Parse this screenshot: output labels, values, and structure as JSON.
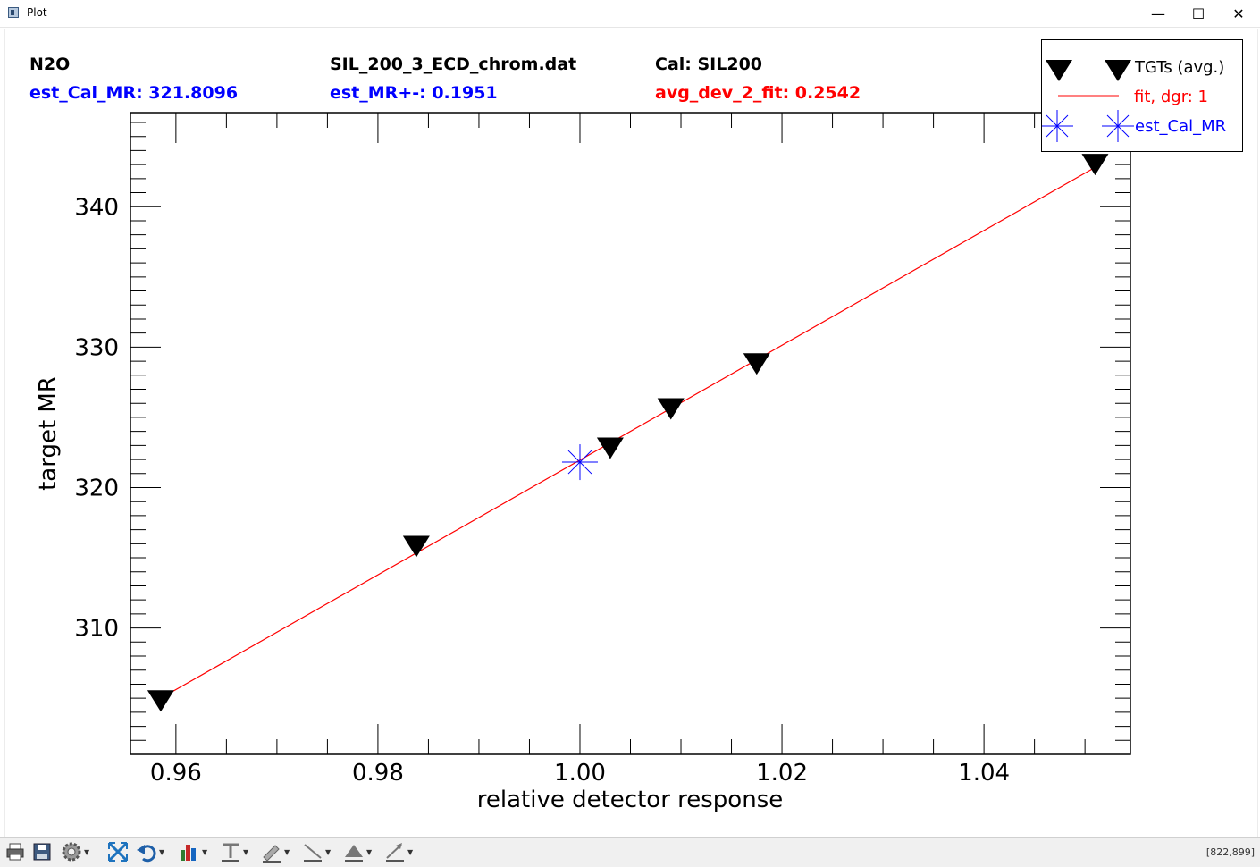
{
  "window": {
    "title": "Plot",
    "minimize_glyph": "—",
    "maximize_glyph": "☐",
    "close_glyph": "✕"
  },
  "header": {
    "gas": "N2O",
    "est_cal_mr": "est_Cal_MR: 321.8096",
    "filename": "SIL_200_3_ECD_chrom.dat",
    "est_mr_pm": "est_MR+-: 0.1951",
    "cal": "Cal: SIL200",
    "avg_dev": "avg_dev_2_fit: 0.2542"
  },
  "legend": {
    "tgts": "TGTs (avg.)",
    "fit": "fit, dgr:  1",
    "est": "est_Cal_MR"
  },
  "chart_data": {
    "type": "scatter",
    "xlabel": "relative detector response",
    "ylabel": "target MR",
    "xlim": [
      0.9555,
      1.0545
    ],
    "ylim": [
      301.0,
      346.7
    ],
    "x_major_ticks": [
      0.96,
      0.98,
      1.0,
      1.02,
      1.04
    ],
    "x_tick_labels": [
      "0.96",
      "0.98",
      "1.00",
      "1.02",
      "1.04"
    ],
    "x_minor_step": 0.005,
    "y_major_ticks": [
      310,
      320,
      330,
      340
    ],
    "y_tick_labels": [
      "310",
      "320",
      "330",
      "340"
    ],
    "y_minor_step": 1,
    "grid": false,
    "legend_position": "top-right",
    "series": [
      {
        "name": "TGTs (avg.)",
        "marker": "down-triangle",
        "color": "#000000",
        "x": [
          0.9585,
          0.9838,
          1.003,
          1.009,
          1.0175,
          1.051
        ],
        "y": [
          304.8,
          315.8,
          322.8,
          325.6,
          328.8,
          343.0
        ]
      },
      {
        "name": "fit, dgr:  1",
        "style": "line",
        "color": "#ff0000",
        "x": [
          0.9585,
          1.051
        ],
        "y": [
          305.0,
          342.8
        ]
      },
      {
        "name": "est_Cal_MR",
        "marker": "star",
        "color": "#0000ff",
        "x": [
          1.0
        ],
        "y": [
          321.8096
        ]
      }
    ]
  },
  "toolbar": {
    "coord_readout": "[822,899]",
    "icons": [
      "print-icon",
      "save-icon",
      "settings-icon",
      "reset-zoom-icon",
      "undo-icon",
      "chart-style-icon",
      "text-tool-icon",
      "pen-tool-icon",
      "line-tool-icon",
      "fill-tool-icon",
      "arrow-tool-icon"
    ]
  },
  "colors": {
    "black": "#000000",
    "blue": "#0000ff",
    "red": "#ff0000"
  }
}
